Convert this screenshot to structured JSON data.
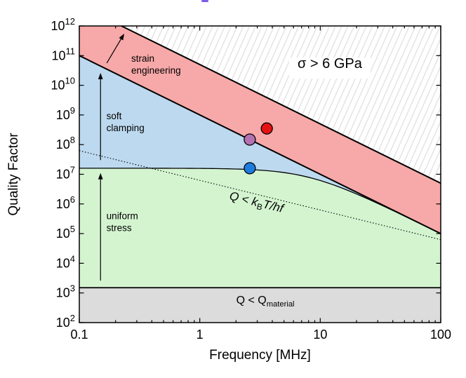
{
  "chart_data": {
    "type": "area",
    "title": "",
    "xlabel": "Frequency [MHz]",
    "ylabel": "Quality Factor",
    "xscale": "log",
    "yscale": "log",
    "xlim": [
      0.1,
      100
    ],
    "ylim": [
      100.0,
      1000000000000.0
    ],
    "grid": false,
    "legend_position": "none",
    "x_major_ticks": [
      0.1,
      1,
      10,
      100
    ],
    "x_tick_labels": [
      "0.1",
      "1",
      "10",
      "100"
    ],
    "y_tick_base": "10",
    "y_tick_exponents": [
      2,
      3,
      4,
      5,
      6,
      7,
      8,
      9,
      10,
      11,
      12
    ],
    "boundaries": {
      "strain_upper_line": {
        "desc": "sigma = 6 GPa limit, Q = coef * f^exp (f in MHz)",
        "coef": 50000000000.0,
        "exp": -2
      },
      "strain_lower_line": {
        "desc": "top of soft clamping, Q = coef * f^exp",
        "coef": 1000000000.0,
        "exp": -2
      },
      "uniform_ceiling": {
        "desc": "top of uniform stress, Q = 1/(1/q0 + f^2/coef)",
        "q0": 16000000.0,
        "coef": 1000000000.0
      },
      "material_limit_q": 1500.0,
      "thermal_line": {
        "desc": "Q = kB*T/(h*f), dotted",
        "coef": 6250000.0,
        "exp": -1
      }
    },
    "regions": [
      {
        "id": "sigma-region",
        "label": "σ > 6 GPa",
        "fill": "hatched"
      },
      {
        "id": "strain-engineering",
        "label": "strain engineering",
        "fill": "#f7a8a8"
      },
      {
        "id": "soft-clamping",
        "label": "soft clamping",
        "fill": "#bdd9ef"
      },
      {
        "id": "uniform-stress",
        "label": "uniform stress",
        "fill": "#d4f4d0"
      },
      {
        "id": "material-region",
        "label": "Q < Qmaterial",
        "fill": "#dcdcdc"
      }
    ],
    "points": [
      {
        "id": "red-point",
        "f_mhz": 3.6,
        "q": 350000000.0,
        "color": "#e61212"
      },
      {
        "id": "purple-point",
        "f_mhz": 2.6,
        "q": 148000000.0,
        "color": "#b572b2"
      },
      {
        "id": "blue-point",
        "f_mhz": 2.6,
        "q": 16000000.0,
        "color": "#1e7be0"
      }
    ],
    "annotations": [
      {
        "id": "strain-label",
        "lines": [
          "strain",
          "engineering"
        ],
        "f": 0.27,
        "q": 62000000000.0,
        "anchor": "start",
        "fs": 13.5
      },
      {
        "id": "soft-label",
        "lines": [
          "soft",
          "clamping"
        ],
        "f": 0.168,
        "q": 720000000.0,
        "anchor": "start",
        "fs": 13.5
      },
      {
        "id": "uniform-label",
        "lines": [
          "uniform",
          "stress"
        ],
        "f": 0.168,
        "q": 310000.0,
        "anchor": "start",
        "fs": 13.5
      },
      {
        "id": "sigma-label",
        "text": "σ > 6 GPa",
        "f": 12,
        "q": 38000000000.0,
        "anchor": "middle",
        "fs": 20,
        "boxed": true
      },
      {
        "id": "thermal-label",
        "f": 2.9,
        "q": 860000.0,
        "anchor": "middle",
        "fs": 17,
        "rotate": 13.9,
        "parts": [
          {
            "t": "Q",
            "i": true
          },
          {
            "t": " < "
          },
          {
            "t": "k",
            "i": true
          },
          {
            "t": "B",
            "sub": true
          },
          {
            "t": "T",
            "i": true
          },
          {
            "t": "/hf",
            "i": true
          }
        ]
      },
      {
        "id": "material-label",
        "f": 3.5,
        "q": 430.0,
        "anchor": "middle",
        "fs": 16,
        "parts": [
          {
            "t": "Q"
          },
          {
            "t": " < "
          },
          {
            "t": "Q"
          },
          {
            "t": "material",
            "sub": true
          }
        ]
      }
    ],
    "arrows": [
      {
        "id": "soft-clamping-arrow",
        "f1": 0.15,
        "q1": 30000000.0,
        "f2": 0.15,
        "q2": 26000000000.0
      },
      {
        "id": "uniform-stress-arrow",
        "f1": 0.15,
        "q1": 2600.0,
        "f2": 0.15,
        "q2": 11000000.0
      },
      {
        "id": "strain-engineering-arrow",
        "f1": 0.169,
        "q1": 56000000000.0,
        "f2": 0.236,
        "q2": 550000000000.0
      }
    ],
    "colors": {
      "frame": "#000000",
      "hatch_line": "#e0e0e0",
      "strain_band": "#f7a8a8",
      "soft_clamping": "#bdd9ef",
      "uniform_stress": "#d4f4d0",
      "material_gray": "#dcdcdc",
      "text": "#000000"
    }
  },
  "artifact": {
    "desc": "cropped purple title remnant at top edge"
  }
}
